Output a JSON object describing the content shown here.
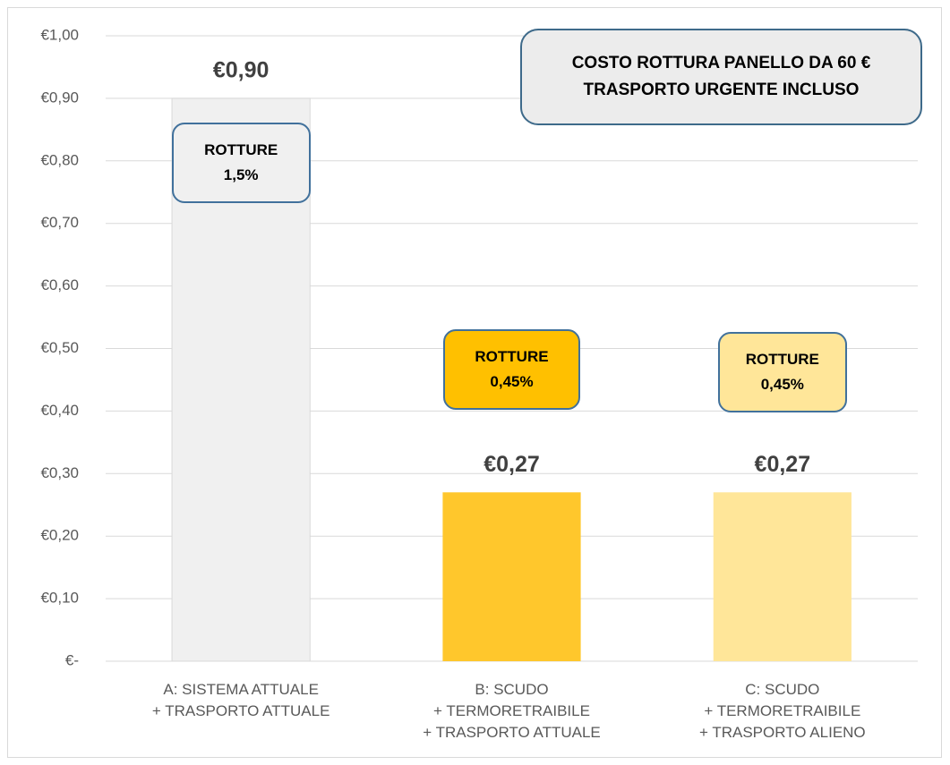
{
  "chart_data": {
    "type": "bar",
    "title": "COSTO ROTTURA PANELLO DA 60 €\nTRASPORTO URGENTE INCLUSO",
    "categories": [
      "A: SISTEMA ATTUALE\n+ TRASPORTO ATTUALE",
      "B: SCUDO\n+ TERMORETRAIBILE\n+ TRASPORTO ATTUALE",
      "C: SCUDO\n+ TERMORETRAIBILE\n+ TRASPORTO ALIENO"
    ],
    "values": [
      0.9,
      0.27,
      0.27
    ],
    "value_labels": [
      "€0,90",
      "€0,27",
      "€0,27"
    ],
    "colors": [
      "#f0f0f0",
      "#ffc72c",
      "#ffe699"
    ],
    "annotations": [
      "ROTTURE\n1,5%",
      "ROTTURE\n0,45%",
      "ROTTURE\n0,45%"
    ],
    "ylim": [
      0,
      1
    ],
    "yticks": [
      {
        "value": 0,
        "label": "€-"
      },
      {
        "value": 0.1,
        "label": "€0,10"
      },
      {
        "value": 0.2,
        "label": "€0,20"
      },
      {
        "value": 0.3,
        "label": "€0,30"
      },
      {
        "value": 0.4,
        "label": "€0,40"
      },
      {
        "value": 0.5,
        "label": "€0,50"
      },
      {
        "value": 0.6,
        "label": "€0,60"
      },
      {
        "value": 0.7,
        "label": "€0,70"
      },
      {
        "value": 0.8,
        "label": "€0,80"
      },
      {
        "value": 0.9,
        "label": "€0,90"
      },
      {
        "value": 1,
        "label": "€1,00"
      }
    ],
    "grid": true
  }
}
